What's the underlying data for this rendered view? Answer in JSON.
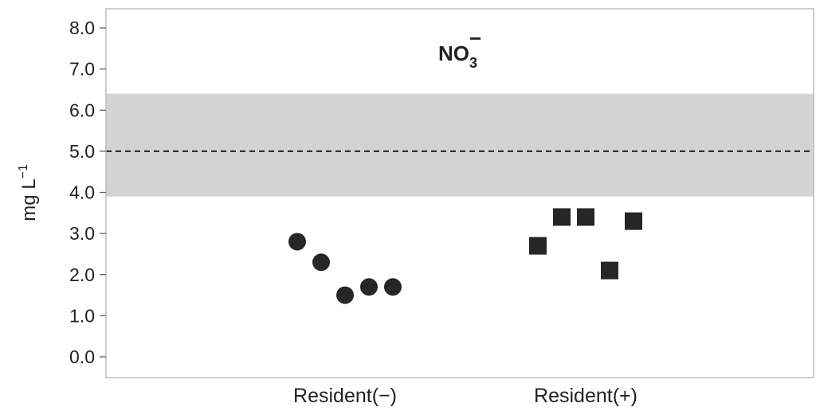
{
  "chart_data": {
    "type": "scatter",
    "title": "NO",
    "title_subscript": "3",
    "title_superscript": "−",
    "ylabel": "mg L",
    "ylabel_superscript": "−1",
    "ylim": [
      -0.5,
      8.5
    ],
    "yticks": [
      0,
      1,
      2,
      3,
      4,
      5,
      6,
      7,
      8
    ],
    "ytick_labels": [
      "0.0",
      "1.0",
      "2.0",
      "3.0",
      "4.0",
      "5.0",
      "6.0",
      "7.0",
      "8.0"
    ],
    "categories": [
      "Resident(−)",
      "Resident(+)"
    ],
    "grid": false,
    "reference_band": {
      "ymin": 3.9,
      "ymax": 6.4,
      "color": "#d3d3d3"
    },
    "reference_line": {
      "y": 5.0,
      "style": "dashed",
      "color": "#222222"
    },
    "series": [
      {
        "category": "Resident(−)",
        "marker": "circle",
        "color": "#262626",
        "values": [
          2.8,
          2.3,
          1.5,
          1.7,
          1.7
        ]
      },
      {
        "category": "Resident(+)",
        "marker": "square",
        "color": "#262626",
        "values": [
          2.7,
          3.4,
          3.4,
          2.1,
          3.3
        ]
      }
    ]
  }
}
